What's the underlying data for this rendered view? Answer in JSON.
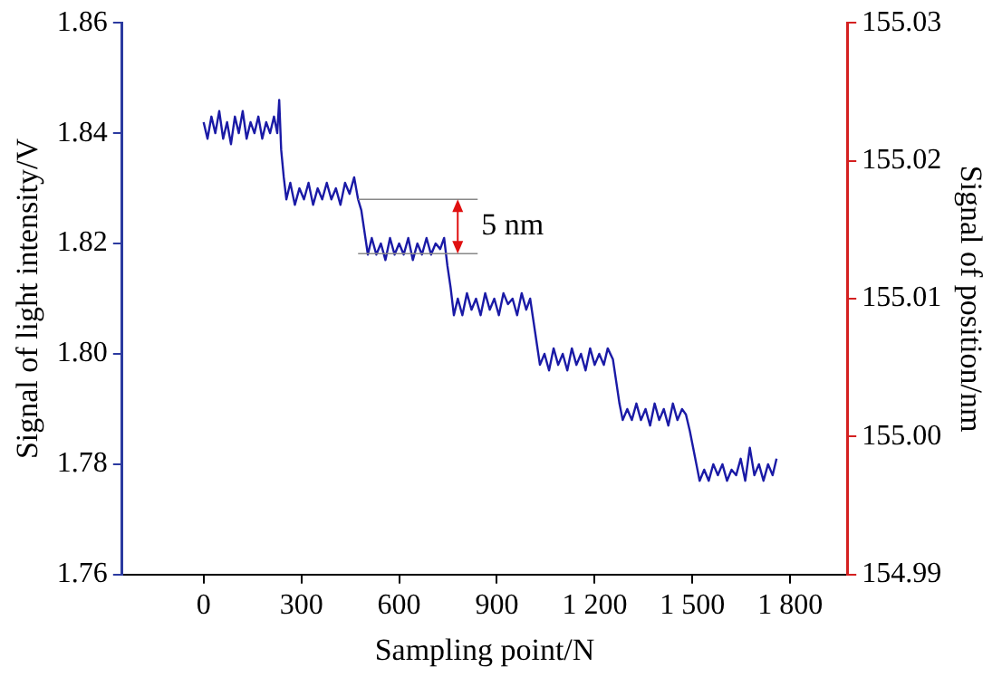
{
  "chart_data": {
    "type": "line",
    "xlabel": "Sampling point/N",
    "ylabel": "Signal of light intensity/V",
    "y2label": "Signal of position/nm",
    "xlim": [
      -250,
      1975
    ],
    "xticks": [
      0,
      300,
      600,
      900,
      {
        "value": 1200,
        "label": "1 200"
      },
      {
        "value": 1500,
        "label": "1 500"
      },
      {
        "value": 1800,
        "label": "1 800"
      }
    ],
    "ylim": [
      1.76,
      1.86
    ],
    "yticks": [
      {
        "value": 1.76,
        "label": "1.76"
      },
      {
        "value": 1.78,
        "label": "1.78"
      },
      {
        "value": 1.8,
        "label": "1.80"
      },
      {
        "value": 1.82,
        "label": "1.82"
      },
      {
        "value": 1.84,
        "label": "1.84"
      },
      {
        "value": 1.86,
        "label": "1.86"
      }
    ],
    "y2lim": [
      154.99,
      155.03
    ],
    "y2ticks": [
      {
        "value": 154.99,
        "label": "154.99"
      },
      {
        "value": 155,
        "label": "155.00"
      },
      {
        "value": 155.01,
        "label": "155.01"
      },
      {
        "value": 155.02,
        "label": "155.02"
      },
      {
        "value": 155.03,
        "label": "155.03"
      }
    ],
    "grid": false,
    "legend": false,
    "marker": "none",
    "line_style": "solid",
    "annotations": [
      {
        "text": "5 nm",
        "x": 474,
        "y": 1.828
      }
    ],
    "series": [
      {
        "color": "#1a1aa6",
        "x": [
          0,
          12,
          24,
          36,
          48,
          60,
          72,
          84,
          96,
          108,
          120,
          132,
          144,
          156,
          168,
          180,
          192,
          204,
          216,
          226,
          232,
          238,
          246,
          254,
          266,
          280,
          294,
          308,
          322,
          336,
          350,
          364,
          378,
          392,
          406,
          420,
          434,
          448,
          462,
          474,
          484,
          494,
          504,
          516,
          530,
          544,
          558,
          572,
          586,
          600,
          614,
          628,
          642,
          656,
          670,
          684,
          698,
          712,
          726,
          738,
          748,
          758,
          768,
          780,
          794,
          808,
          822,
          836,
          850,
          864,
          878,
          892,
          906,
          920,
          934,
          948,
          962,
          976,
          990,
          1002,
          1012,
          1022,
          1032,
          1046,
          1060,
          1074,
          1088,
          1102,
          1116,
          1130,
          1144,
          1158,
          1172,
          1186,
          1200,
          1214,
          1228,
          1240,
          1256,
          1266,
          1276,
          1286,
          1300,
          1314,
          1328,
          1342,
          1356,
          1370,
          1384,
          1398,
          1412,
          1426,
          1440,
          1454,
          1468,
          1480,
          1492,
          1502,
          1512,
          1522,
          1536,
          1550,
          1564,
          1578,
          1592,
          1606,
          1620,
          1634,
          1648,
          1662,
          1676,
          1690,
          1704,
          1718,
          1732,
          1746,
          1758
        ],
        "values": [
          1.842,
          1.839,
          1.843,
          1.84,
          1.844,
          1.839,
          1.842,
          1.838,
          1.843,
          1.84,
          1.844,
          1.839,
          1.842,
          1.84,
          1.843,
          1.839,
          1.842,
          1.84,
          1.843,
          1.84,
          1.846,
          1.837,
          1.832,
          1.828,
          1.831,
          1.827,
          1.83,
          1.828,
          1.831,
          1.827,
          1.83,
          1.828,
          1.831,
          1.828,
          1.83,
          1.827,
          1.831,
          1.829,
          1.832,
          1.828,
          1.826,
          1.822,
          1.818,
          1.821,
          1.818,
          1.82,
          1.817,
          1.821,
          1.818,
          1.82,
          1.818,
          1.821,
          1.817,
          1.82,
          1.818,
          1.821,
          1.818,
          1.82,
          1.819,
          1.821,
          1.816,
          1.812,
          1.807,
          1.81,
          1.807,
          1.811,
          1.808,
          1.81,
          1.807,
          1.811,
          1.808,
          1.81,
          1.807,
          1.811,
          1.809,
          1.81,
          1.807,
          1.811,
          1.808,
          1.81,
          1.806,
          1.802,
          1.798,
          1.8,
          1.797,
          1.801,
          1.798,
          1.8,
          1.797,
          1.801,
          1.798,
          1.8,
          1.797,
          1.801,
          1.798,
          1.8,
          1.798,
          1.801,
          1.799,
          1.795,
          1.791,
          1.788,
          1.79,
          1.788,
          1.791,
          1.788,
          1.79,
          1.787,
          1.791,
          1.788,
          1.79,
          1.787,
          1.791,
          1.788,
          1.79,
          1.789,
          1.786,
          1.783,
          1.78,
          1.777,
          1.779,
          1.777,
          1.78,
          1.778,
          1.78,
          1.777,
          1.779,
          1.778,
          1.781,
          1.777,
          1.783,
          1.778,
          1.78,
          1.777,
          1.78,
          1.778,
          1.781
        ]
      }
    ]
  }
}
